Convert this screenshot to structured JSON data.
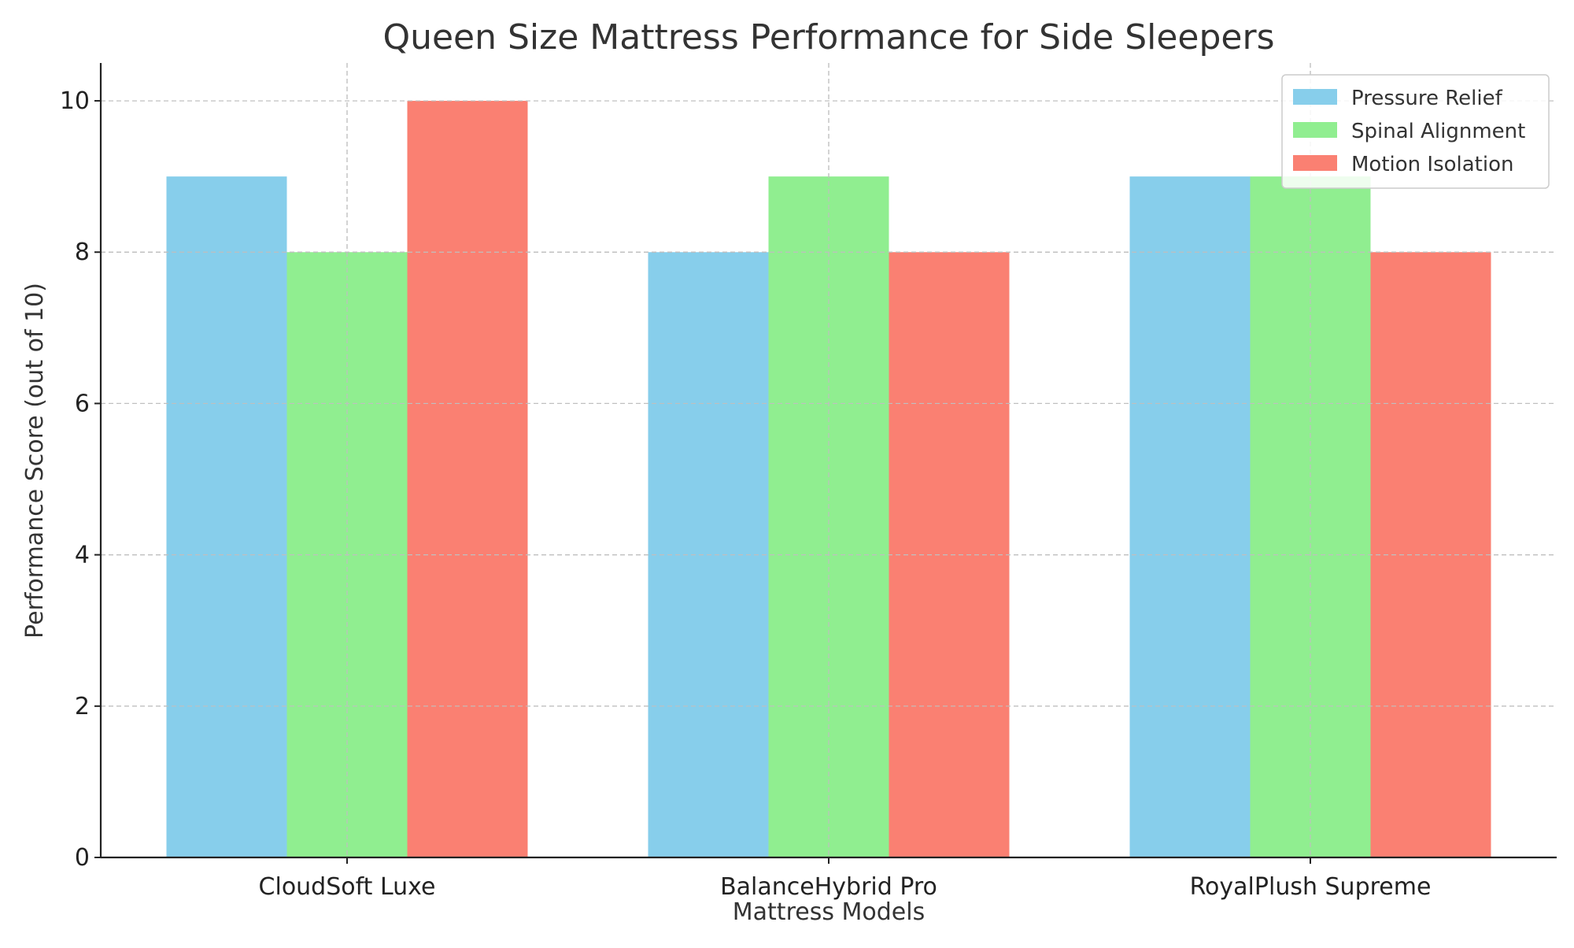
{
  "chart_data": {
    "type": "bar",
    "title": "Queen Size Mattress Performance for Side Sleepers",
    "xlabel": "Mattress Models",
    "ylabel": "Performance Score (out of 10)",
    "categories": [
      "CloudSoft Luxe",
      "BalanceHybrid Pro",
      "RoyalPlush Supreme"
    ],
    "series": [
      {
        "name": "Pressure Relief",
        "values": [
          9,
          8,
          9
        ],
        "color": "#87ceeb"
      },
      {
        "name": "Spinal Alignment",
        "values": [
          8,
          9,
          9
        ],
        "color": "#90ee90"
      },
      {
        "name": "Motion Isolation",
        "values": [
          10,
          8,
          8
        ],
        "color": "#fa8072"
      }
    ],
    "ylim": [
      0,
      10.5
    ],
    "yticks": [
      0,
      2,
      4,
      6,
      8,
      10
    ],
    "grid": true,
    "legend_position": "top-right"
  }
}
